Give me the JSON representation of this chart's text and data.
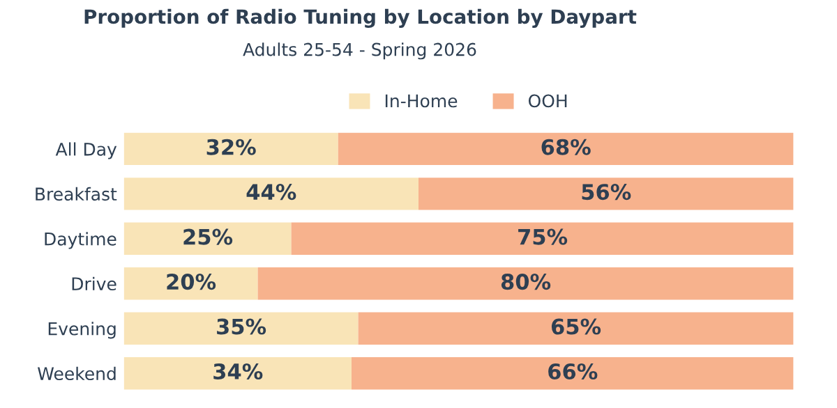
{
  "chart_data": {
    "type": "bar",
    "orientation": "horizontal",
    "stacked": true,
    "title": "Proportion of Radio Tuning by Location by Daypart",
    "subtitle": "Adults 25-54 - Spring 2026",
    "categories": [
      "All Day",
      "Breakfast",
      "Daytime",
      "Drive",
      "Evening",
      "Weekend"
    ],
    "series": [
      {
        "name": "In-Home",
        "color": "#f9e4b7",
        "values": [
          32,
          44,
          25,
          20,
          35,
          34
        ],
        "value_labels": [
          "32%",
          "44%",
          "25%",
          "20%",
          "35%",
          "34%"
        ]
      },
      {
        "name": "OOH",
        "color": "#f7b28d",
        "values": [
          68,
          56,
          75,
          80,
          65,
          66
        ],
        "value_labels": [
          "68%",
          "56%",
          "75%",
          "80%",
          "65%",
          "66%"
        ]
      }
    ],
    "legend": "top",
    "tick_labels": "y",
    "grid": false
  }
}
